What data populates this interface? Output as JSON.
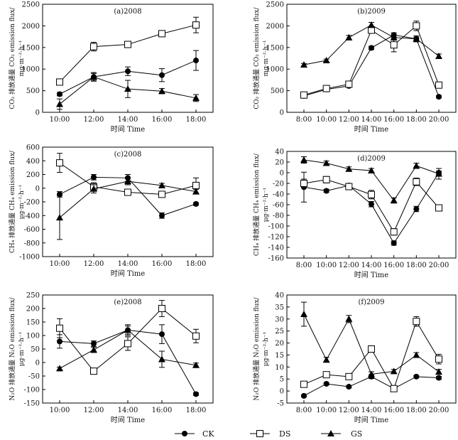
{
  "figure": {
    "legend": [
      {
        "name": "CK",
        "marker": "circle-filled"
      },
      {
        "name": "DS",
        "marker": "square-open"
      },
      {
        "name": "GS",
        "marker": "triangle-filled"
      }
    ],
    "colors": {
      "line": "#000000",
      "background": "#ffffff"
    }
  },
  "chart_data": [
    {
      "id": "a",
      "type": "line",
      "title": "(a)2008",
      "xlabel": "时间 Time",
      "ylabel_lines": [
        "CO₂ 排放通量 CO₂ emission flux/",
        "mg·m⁻²·h⁻¹"
      ],
      "categories": [
        "10:00",
        "12:00",
        "14:00",
        "16:00",
        "18:00"
      ],
      "ylim": [
        0,
        2500
      ],
      "yticks": [
        0,
        500,
        1000,
        1500,
        2000,
        2500
      ],
      "series": [
        {
          "name": "CK",
          "values": [
            420,
            820,
            950,
            860,
            1200
          ],
          "errors": [
            40,
            100,
            100,
            150,
            230
          ]
        },
        {
          "name": "DS",
          "values": [
            700,
            1520,
            1570,
            1820,
            2020
          ],
          "errors": [
            40,
            100,
            70,
            70,
            180
          ]
        },
        {
          "name": "GS",
          "values": [
            190,
            820,
            540,
            490,
            330
          ],
          "errors": [
            120,
            80,
            200,
            60,
            80
          ]
        }
      ]
    },
    {
      "id": "b",
      "type": "line",
      "title": "(b)2009",
      "xlabel": "时间 Time",
      "ylabel_lines": [
        "CO₂ 排放通量 CO₂ emission flux/",
        "mg·m⁻²·h⁻¹"
      ],
      "categories": [
        "8:00",
        "10:00",
        "12:00",
        "14:00",
        "16:00",
        "18:00",
        "20:00"
      ],
      "ylim": [
        0,
        2500
      ],
      "yticks": [
        0,
        500,
        1000,
        1500,
        2000,
        2500
      ],
      "series": [
        {
          "name": "CK",
          "values": [
            380,
            530,
            610,
            1490,
            1790,
            1700,
            360
          ],
          "errors": [
            50,
            30,
            30,
            40,
            50,
            40,
            30
          ]
        },
        {
          "name": "DS",
          "values": [
            400,
            550,
            650,
            1900,
            1560,
            2000,
            630
          ],
          "errors": [
            60,
            40,
            50,
            70,
            160,
            110,
            60
          ]
        },
        {
          "name": "GS",
          "values": [
            1100,
            1200,
            1730,
            2020,
            1730,
            1700,
            1300
          ],
          "errors": [
            30,
            30,
            50,
            60,
            60,
            70,
            50
          ]
        }
      ]
    },
    {
      "id": "c",
      "type": "line",
      "title": "(c)2008",
      "xlabel": "时间 Time",
      "ylabel_lines": [
        "CH₄ 排放通量 CH₄ emission flux/",
        "μg·m⁻²·h⁻¹"
      ],
      "categories": [
        "10:00",
        "12:00",
        "14:00",
        "16:00",
        "18:00"
      ],
      "ylim": [
        -1000,
        600
      ],
      "yticks": [
        -1000,
        -800,
        -600,
        -400,
        -200,
        0,
        200,
        400,
        600
      ],
      "series": [
        {
          "name": "CK",
          "values": [
            -90,
            160,
            150,
            -400,
            -230
          ],
          "errors": [
            40,
            40,
            50,
            40,
            20
          ]
        },
        {
          "name": "DS",
          "values": [
            370,
            20,
            -60,
            -90,
            40
          ],
          "errors": [
            140,
            60,
            30,
            30,
            110
          ]
        },
        {
          "name": "GS",
          "values": [
            -430,
            -10,
            100,
            40,
            -50
          ],
          "errors": [
            320,
            60,
            50,
            30,
            30
          ]
        }
      ]
    },
    {
      "id": "d",
      "type": "line",
      "title": "(d)2009",
      "xlabel": "时间 Time",
      "ylabel_lines": [
        "CH₄ 排放通量 CH₄ emission flux/",
        "μg·m⁻²·h⁻¹"
      ],
      "categories": [
        "8:00",
        "10:00",
        "12:00",
        "14:00",
        "16:00",
        "18:00",
        "20:00"
      ],
      "ylim": [
        -160,
        40
      ],
      "yticks": [
        -160,
        -140,
        -120,
        -100,
        -80,
        -60,
        -40,
        -20,
        0,
        20,
        40
      ],
      "series": [
        {
          "name": "CK",
          "values": [
            -27,
            -34,
            -24,
            -59,
            -132,
            -68,
            0
          ],
          "errors": [
            28,
            3,
            4,
            5,
            4,
            5,
            3
          ]
        },
        {
          "name": "DS",
          "values": [
            -20,
            -13,
            -26,
            -41,
            -111,
            -17,
            -66
          ],
          "errors": [
            8,
            6,
            5,
            8,
            6,
            7,
            5
          ]
        },
        {
          "name": "GS",
          "values": [
            24,
            18,
            7,
            4,
            -52,
            13,
            -2
          ],
          "errors": [
            6,
            4,
            4,
            4,
            5,
            5,
            10
          ]
        }
      ]
    },
    {
      "id": "e",
      "type": "line",
      "title": "(e)2008",
      "xlabel": "时间 Time",
      "ylabel_lines": [
        "N₂O 排放通量 N₂O emission flux/",
        "μg·m⁻²·h⁻¹"
      ],
      "categories": [
        "10:00",
        "12:00",
        "14:00",
        "16:00",
        "18:00"
      ],
      "ylim": [
        -150,
        250
      ],
      "yticks": [
        -150,
        -100,
        -50,
        0,
        50,
        100,
        150,
        200,
        250
      ],
      "series": [
        {
          "name": "CK",
          "values": [
            78,
            70,
            120,
            105,
            -117
          ],
          "errors": [
            25,
            10,
            15,
            35,
            5
          ]
        },
        {
          "name": "DS",
          "values": [
            127,
            -32,
            70,
            200,
            98
          ],
          "errors": [
            35,
            5,
            25,
            30,
            25
          ]
        },
        {
          "name": "GS",
          "values": [
            -22,
            47,
            120,
            12,
            -10
          ],
          "errors": [
            5,
            10,
            20,
            30,
            8
          ]
        }
      ]
    },
    {
      "id": "f",
      "type": "line",
      "title": "(f)2009",
      "xlabel": "时间 Time",
      "ylabel_lines": [
        "N₂O 排放通量 N₂O emission flux/",
        "μg·m⁻²·h⁻¹"
      ],
      "categories": [
        "8:00",
        "10:00",
        "12:00",
        "14:00",
        "16:00",
        "18:00",
        "20:00"
      ],
      "ylim": [
        -5,
        40
      ],
      "yticks": [
        -5,
        0,
        5,
        10,
        15,
        20,
        25,
        30,
        35,
        40
      ],
      "series": [
        {
          "name": "CK",
          "values": [
            -2,
            3,
            1.8,
            6,
            1,
            6,
            5.5
          ],
          "errors": [
            0.5,
            0.5,
            0.5,
            0.8,
            0.5,
            0.5,
            0.6
          ]
        },
        {
          "name": "DS",
          "values": [
            2.8,
            6.8,
            6,
            17.5,
            1,
            29,
            13.3
          ],
          "errors": [
            1,
            0.8,
            0.6,
            0.6,
            0.5,
            2,
            2
          ]
        },
        {
          "name": "GS",
          "values": [
            32,
            13,
            30,
            7,
            8.2,
            15,
            8
          ],
          "errors": [
            5,
            1,
            1.5,
            1,
            0.8,
            1,
            1
          ]
        }
      ]
    }
  ]
}
